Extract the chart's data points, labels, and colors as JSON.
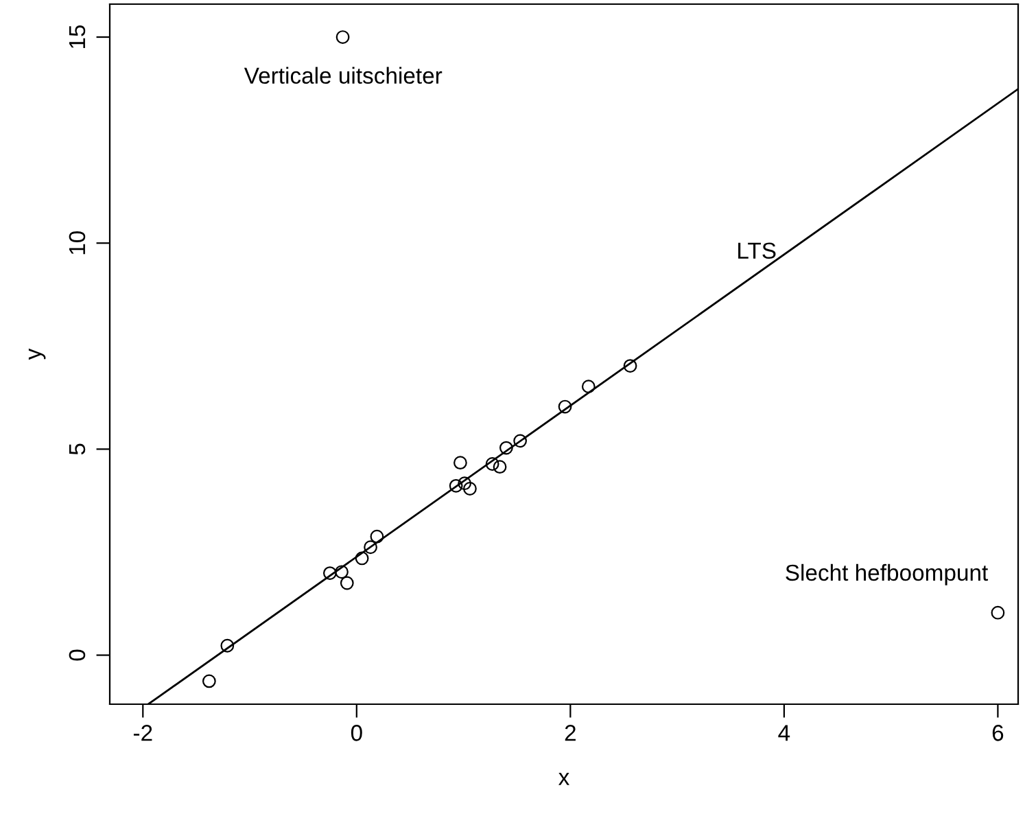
{
  "chart_data": {
    "type": "scatter",
    "xlabel": "x",
    "ylabel": "y",
    "xlim": [
      -2.31,
      6.19
    ],
    "ylim": [
      -1.19,
      15.8
    ],
    "xticks": [
      -2,
      0,
      2,
      4,
      6
    ],
    "yticks": [
      0,
      5,
      10,
      15
    ],
    "grid": false,
    "legend": false,
    "series": [
      {
        "marker": "circle",
        "color": "#000000",
        "x": [
          -0.13,
          6.0,
          -1.38,
          -1.21,
          -0.25,
          -0.14,
          -0.09,
          0.05,
          0.13,
          0.19,
          0.93,
          0.97,
          1.01,
          1.06,
          1.27,
          1.34,
          1.4,
          1.53,
          1.95,
          2.17,
          2.56
        ],
        "values": [
          15.0,
          1.03,
          -0.63,
          0.23,
          1.99,
          2.02,
          1.75,
          2.35,
          2.62,
          2.88,
          4.11,
          4.67,
          4.17,
          4.04,
          4.64,
          4.57,
          5.03,
          5.2,
          6.03,
          6.52,
          7.02
        ]
      },
      {
        "type": "line",
        "color": "#000000",
        "x": [
          -1.95,
          6.19
        ],
        "values": [
          -1.19,
          13.74
        ]
      }
    ],
    "annotations": [
      "Verticale uitschieter",
      "LTS",
      "Slecht hefboompunt"
    ]
  }
}
